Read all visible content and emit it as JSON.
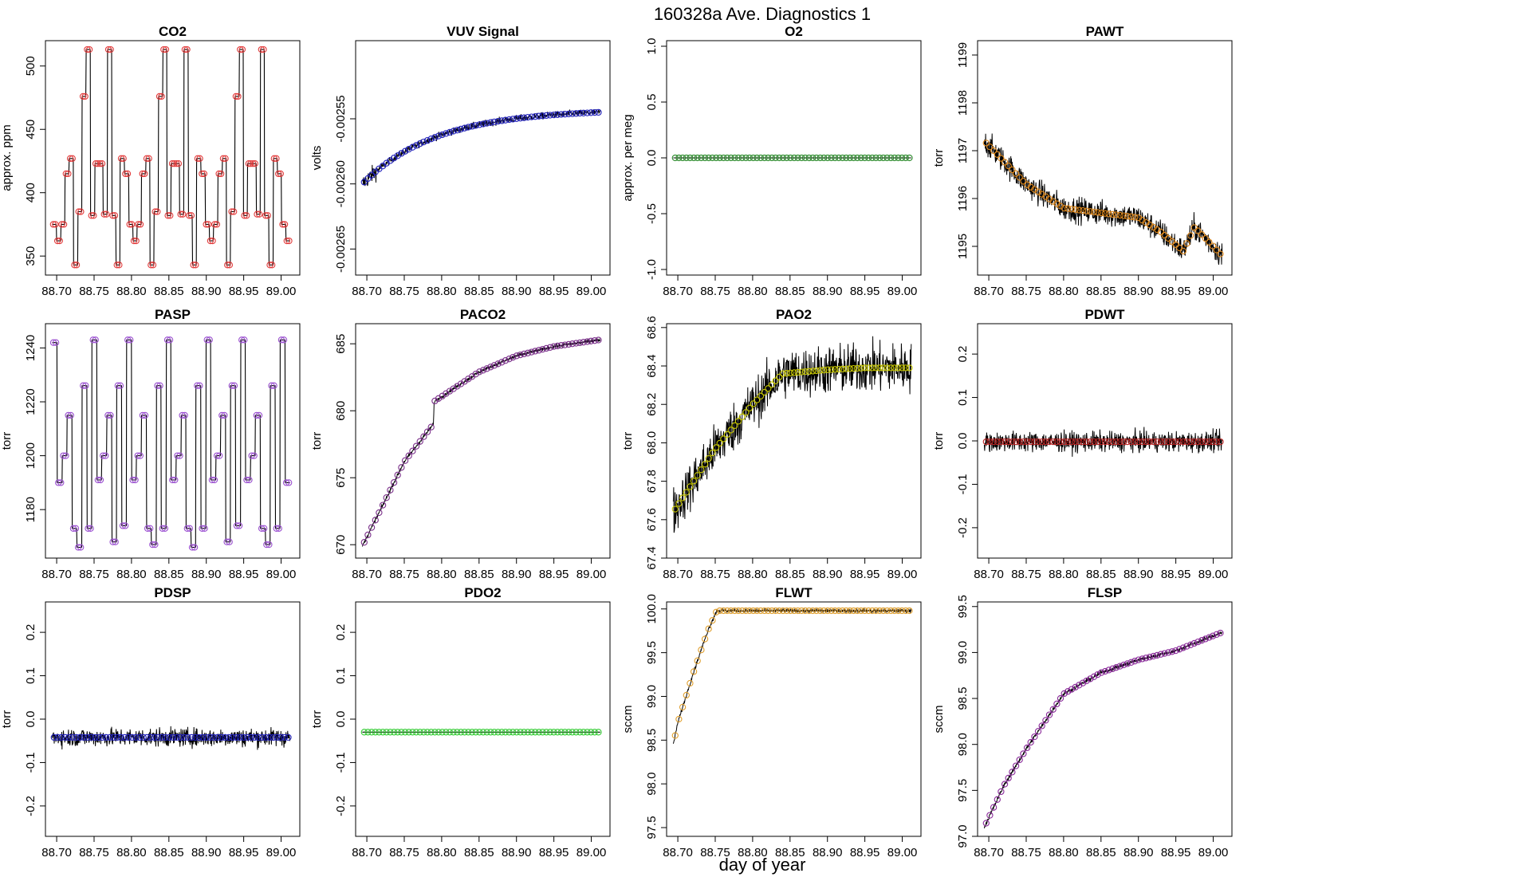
{
  "figure": {
    "title": "160328a   Ave. Diagnostics 1",
    "xlabel": "day of year"
  },
  "chart_data": [
    {
      "type": "line",
      "title": "CO2",
      "ylabel": "approx. ppm",
      "xlim": [
        88.685,
        89.025
      ],
      "ylim": [
        335,
        520
      ],
      "xticks": [
        88.7,
        88.75,
        88.8,
        88.85,
        88.9,
        88.95,
        89.0
      ],
      "xtick_labels": [
        "88.70",
        "88.75",
        "88.80",
        "88.85",
        "88.90",
        "88.95",
        "89.00"
      ],
      "yticks": [
        350,
        400,
        450,
        500
      ],
      "ytick_labels": [
        "350",
        "400",
        "450",
        "500"
      ],
      "x_start": 88.694,
      "x_end": 89.012,
      "marker_color": "#e23b3b",
      "steps": [
        375,
        362,
        375,
        415,
        427,
        343,
        385,
        476,
        513,
        382,
        423,
        423,
        383,
        513,
        382,
        343,
        427,
        415,
        375,
        362,
        375,
        415,
        427,
        343,
        385,
        476,
        513,
        382,
        423,
        423,
        383,
        513,
        382,
        343,
        427,
        415,
        375,
        362,
        375,
        415,
        427,
        343,
        385,
        476,
        513,
        382,
        423,
        423,
        383,
        513,
        382,
        343,
        427,
        415,
        375,
        362
      ],
      "noise": 0
    },
    {
      "type": "line",
      "title": "VUV Signal",
      "ylabel": "volts",
      "xlim": [
        88.685,
        89.025
      ],
      "ylim": [
        -0.00267,
        -0.00249
      ],
      "xticks": [
        88.7,
        88.75,
        88.8,
        88.85,
        88.9,
        88.95,
        89.0
      ],
      "xtick_labels": [
        "88.70",
        "88.75",
        "88.80",
        "88.85",
        "88.90",
        "88.95",
        "89.00"
      ],
      "yticks": [
        -0.00265,
        -0.0026,
        -0.00255
      ],
      "ytick_labels": [
        "-0.00265",
        "-0.00260",
        "-0.00255"
      ],
      "x_start": 88.694,
      "x_end": 89.012,
      "marker_color": "#2222bb",
      "start_value": -0.0026,
      "end_value": -0.002545,
      "noise": 2.5e-06
    },
    {
      "type": "line",
      "title": "O2",
      "ylabel": "approx. per meg",
      "xlim": [
        88.685,
        89.025
      ],
      "ylim": [
        -1.05,
        1.05
      ],
      "xticks": [
        88.7,
        88.75,
        88.8,
        88.85,
        88.9,
        88.95,
        89.0
      ],
      "xtick_labels": [
        "88.70",
        "88.75",
        "88.80",
        "88.85",
        "88.90",
        "88.95",
        "89.00"
      ],
      "yticks": [
        -1.0,
        -0.5,
        0.0,
        0.5,
        1.0
      ],
      "ytick_labels": [
        "-1.0",
        "-0.5",
        "0.0",
        "0.5",
        "1.0"
      ],
      "x_start": 88.694,
      "x_end": 89.012,
      "marker_color": "#2a8a2a",
      "constant": 0.0,
      "noise": 0
    },
    {
      "type": "line",
      "title": "PAWT",
      "ylabel": "torr",
      "xlim": [
        88.685,
        89.025
      ],
      "ylim": [
        1194.4,
        1199.3
      ],
      "xticks": [
        88.7,
        88.75,
        88.8,
        88.85,
        88.9,
        88.95,
        89.0
      ],
      "xtick_labels": [
        "88.70",
        "88.75",
        "88.80",
        "88.85",
        "88.90",
        "88.95",
        "89.00"
      ],
      "yticks": [
        1195,
        1196,
        1197,
        1198,
        1199
      ],
      "ytick_labels": [
        "1195",
        "1196",
        "1197",
        "1198",
        "1199"
      ],
      "x_start": 88.694,
      "x_end": 89.012,
      "marker_color": "#e08a1e",
      "key_x": [
        88.694,
        88.75,
        88.8,
        88.85,
        88.9,
        88.93,
        88.96,
        88.975,
        89.0,
        89.012
      ],
      "key_y": [
        1197.2,
        1196.3,
        1195.8,
        1195.7,
        1195.6,
        1195.3,
        1194.9,
        1195.4,
        1195.0,
        1194.8
      ],
      "noise": 0.25
    },
    {
      "type": "line",
      "title": "PASP",
      "ylabel": "torr",
      "xlim": [
        88.685,
        89.025
      ],
      "ylim": [
        1162,
        1249
      ],
      "xticks": [
        88.7,
        88.75,
        88.8,
        88.85,
        88.9,
        88.95,
        89.0
      ],
      "xtick_labels": [
        "88.70",
        "88.75",
        "88.80",
        "88.85",
        "88.90",
        "88.95",
        "89.00"
      ],
      "yticks": [
        1180,
        1200,
        1220,
        1240
      ],
      "ytick_labels": [
        "1180",
        "1200",
        "1220",
        "1240"
      ],
      "x_start": 88.694,
      "x_end": 89.012,
      "marker_color": "#9a4fd0",
      "steps": [
        1242,
        1190,
        1200,
        1215,
        1173,
        1166,
        1226,
        1173,
        1243,
        1191,
        1200,
        1215,
        1168,
        1226,
        1174,
        1243,
        1191,
        1200,
        1215,
        1173,
        1167,
        1226,
        1173,
        1243,
        1191,
        1200,
        1215,
        1173,
        1166,
        1226,
        1173,
        1243,
        1191,
        1200,
        1215,
        1168,
        1226,
        1174,
        1243,
        1191,
        1200,
        1215,
        1173,
        1167,
        1226,
        1173,
        1243,
        1190
      ],
      "noise": 0
    },
    {
      "type": "line",
      "title": "PACO2",
      "ylabel": "torr",
      "xlim": [
        88.685,
        89.025
      ],
      "ylim": [
        669,
        686.5
      ],
      "xticks": [
        88.7,
        88.75,
        88.8,
        88.85,
        88.9,
        88.95,
        89.0
      ],
      "xtick_labels": [
        "88.70",
        "88.75",
        "88.80",
        "88.85",
        "88.90",
        "88.95",
        "89.00"
      ],
      "yticks": [
        670,
        675,
        680,
        685
      ],
      "ytick_labels": [
        "670",
        "675",
        "680",
        "685"
      ],
      "x_start": 88.694,
      "x_end": 89.012,
      "marker_color": "#7a2f8a",
      "key_x": [
        88.694,
        88.72,
        88.75,
        88.789,
        88.79,
        88.85,
        88.9,
        88.95,
        89.012
      ],
      "key_y": [
        669.9,
        672.8,
        676.2,
        679.0,
        680.7,
        682.9,
        684.1,
        684.8,
        685.3
      ],
      "noise": 0.12
    },
    {
      "type": "line",
      "title": "PAO2",
      "ylabel": "torr",
      "xlim": [
        88.685,
        89.025
      ],
      "ylim": [
        67.4,
        68.62
      ],
      "xticks": [
        88.7,
        88.75,
        88.8,
        88.85,
        88.9,
        88.95,
        89.0
      ],
      "xtick_labels": [
        "88.70",
        "88.75",
        "88.80",
        "88.85",
        "88.90",
        "88.95",
        "89.00"
      ],
      "yticks": [
        67.4,
        67.6,
        67.8,
        68.0,
        68.2,
        68.4,
        68.6
      ],
      "ytick_labels": [
        "67.4",
        "67.6",
        "67.8",
        "68.0",
        "68.2",
        "68.4",
        "68.6"
      ],
      "x_start": 88.694,
      "x_end": 89.012,
      "marker_color": "#c8c800",
      "key_x": [
        88.694,
        88.75,
        88.8,
        88.84,
        88.9,
        88.95,
        89.012
      ],
      "key_y": [
        67.64,
        67.97,
        68.2,
        68.36,
        68.38,
        68.39,
        68.39
      ],
      "noise": 0.12
    },
    {
      "type": "line",
      "title": "PDWT",
      "ylabel": "torr",
      "xlim": [
        88.685,
        89.025
      ],
      "ylim": [
        -0.27,
        0.27
      ],
      "xticks": [
        88.7,
        88.75,
        88.8,
        88.85,
        88.9,
        88.95,
        89.0
      ],
      "xtick_labels": [
        "88.70",
        "88.75",
        "88.80",
        "88.85",
        "88.90",
        "88.95",
        "89.00"
      ],
      "yticks": [
        -0.2,
        -0.1,
        0.0,
        0.1,
        0.2
      ],
      "ytick_labels": [
        "-0.2",
        "-0.1",
        "0.0",
        "0.1",
        "0.2"
      ],
      "x_start": 88.694,
      "x_end": 89.012,
      "marker_color": "#bb2222",
      "constant": -0.002,
      "noise": 0.022
    },
    {
      "type": "line",
      "title": "PDSP",
      "ylabel": "torr",
      "xlim": [
        88.685,
        89.025
      ],
      "ylim": [
        -0.27,
        0.27
      ],
      "xticks": [
        88.7,
        88.75,
        88.8,
        88.85,
        88.9,
        88.95,
        89.0
      ],
      "xtick_labels": [
        "88.70",
        "88.75",
        "88.80",
        "88.85",
        "88.90",
        "88.95",
        "89.00"
      ],
      "yticks": [
        -0.2,
        -0.1,
        0.0,
        0.1,
        0.2
      ],
      "ytick_labels": [
        "-0.2",
        "-0.1",
        "0.0",
        "0.1",
        "0.2"
      ],
      "x_start": 88.694,
      "x_end": 89.012,
      "marker_color": "#2222bb",
      "constant": -0.042,
      "noise": 0.02
    },
    {
      "type": "line",
      "title": "PDO2",
      "ylabel": "torr",
      "xlim": [
        88.685,
        89.025
      ],
      "ylim": [
        -0.27,
        0.27
      ],
      "xticks": [
        88.7,
        88.75,
        88.8,
        88.85,
        88.9,
        88.95,
        89.0
      ],
      "xtick_labels": [
        "88.70",
        "88.75",
        "88.80",
        "88.85",
        "88.90",
        "88.95",
        "89.00"
      ],
      "yticks": [
        -0.2,
        -0.1,
        0.0,
        0.1,
        0.2
      ],
      "ytick_labels": [
        "-0.2",
        "-0.1",
        "0.0",
        "0.1",
        "0.2"
      ],
      "x_start": 88.694,
      "x_end": 89.012,
      "marker_color": "#33cc33",
      "constant": -0.03,
      "noise": 0
    },
    {
      "type": "line",
      "title": "FLWT",
      "ylabel": "sccm",
      "xlim": [
        88.685,
        89.025
      ],
      "ylim": [
        97.4,
        100.08
      ],
      "xticks": [
        88.7,
        88.75,
        88.8,
        88.85,
        88.9,
        88.95,
        89.0
      ],
      "xtick_labels": [
        "88.70",
        "88.75",
        "88.80",
        "88.85",
        "88.90",
        "88.95",
        "89.00"
      ],
      "yticks": [
        97.5,
        98.0,
        98.5,
        99.0,
        99.5,
        100.0
      ],
      "ytick_labels": [
        "97.5",
        "98.0",
        "98.5",
        "99.0",
        "99.5",
        "100.0"
      ],
      "x_start": 88.694,
      "x_end": 89.012,
      "marker_color": "#e0a030",
      "key_x": [
        88.694,
        88.7,
        88.72,
        88.74,
        88.752,
        89.012
      ],
      "key_y": [
        98.45,
        98.7,
        99.25,
        99.75,
        99.98,
        99.98
      ],
      "noise": 0.02
    },
    {
      "type": "line",
      "title": "FLSP",
      "ylabel": "sccm",
      "xlim": [
        88.685,
        89.025
      ],
      "ylim": [
        97.0,
        99.55
      ],
      "xticks": [
        88.7,
        88.75,
        88.8,
        88.85,
        88.9,
        88.95,
        89.0
      ],
      "xtick_labels": [
        "88.70",
        "88.75",
        "88.80",
        "88.85",
        "88.90",
        "88.95",
        "89.00"
      ],
      "yticks": [
        97.0,
        97.5,
        98.0,
        98.5,
        99.0,
        99.5
      ],
      "ytick_labels": [
        "97.0",
        "97.5",
        "98.0",
        "98.5",
        "99.0",
        "99.5"
      ],
      "x_start": 88.694,
      "x_end": 89.012,
      "marker_color": "#8a2a9a",
      "key_x": [
        88.694,
        88.72,
        88.75,
        88.8,
        88.85,
        88.9,
        88.95,
        89.012
      ],
      "key_y": [
        97.1,
        97.55,
        97.95,
        98.55,
        98.78,
        98.92,
        99.02,
        99.22
      ],
      "noise": 0.02
    }
  ]
}
